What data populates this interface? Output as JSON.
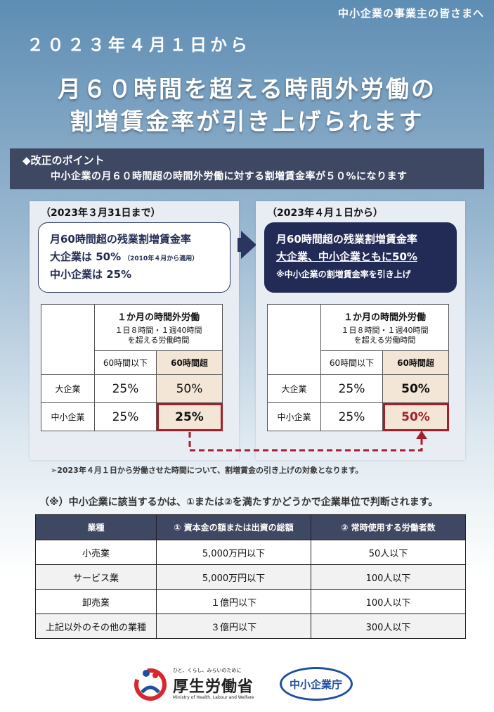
{
  "header": {
    "audience": "中小企業の事業主の皆さまへ",
    "date_from": "２０２３年４月１日から",
    "title_line1": "月６０時間を超える時間外労働の",
    "title_line2": "割増賃金率が引き上げられます"
  },
  "point": {
    "label": "◆改正のポイント",
    "text": "中小企業の月６０時間超の時間外労働に対する割増賃金率が５０%になります"
  },
  "before": {
    "period": "（2023年３月31日まで）",
    "callout_line1": "月60時間超の残業割増賃金率",
    "callout_line2": "大企業は 50%",
    "callout_note": "（2010年４月から適用）",
    "callout_line3": "中小企業は 25%",
    "table": {
      "header_main": "１か月の時間外労働",
      "header_sub1": "１日８時間・１週40時間",
      "header_sub2": "を超える労働時間",
      "col_under": "60時間以下",
      "col_over": "60時間超",
      "rows": [
        {
          "label": "大企業",
          "under": "25%",
          "over": "50%"
        },
        {
          "label": "中小企業",
          "under": "25%",
          "over": "25%"
        }
      ]
    }
  },
  "after": {
    "period": "（2023年４月１日から）",
    "callout_line1": "月60時間超の残業割増賃金率",
    "callout_line2": "大企業、中小企業ともに50%",
    "callout_line3": "※中小企業の割増賃金率を引き上げ",
    "table": {
      "header_main": "１か月の時間外労働",
      "header_sub1": "１日８時間・１週40時間",
      "header_sub2": "を超える労働時間",
      "col_under": "60時間以下",
      "col_over": "60時間超",
      "rows": [
        {
          "label": "大企業",
          "under": "25%",
          "over": "50%"
        },
        {
          "label": "中小企業",
          "under": "25%",
          "over": "50%"
        }
      ]
    }
  },
  "footnote": "➢2023年４月１日から労働させた時間について、割増賃金の引き上げの対象となります。",
  "sme_note": "（※）中小企業に該当するかは、①または②を満たすかどうかで企業単位で判断されます。",
  "sme_table": {
    "headers": [
      "業種",
      "① 資本金の額または出資の総額",
      "② 常時使用する労働者数"
    ],
    "rows": [
      [
        "小売業",
        "5,000万円以下",
        "50人以下"
      ],
      [
        "サービス業",
        "5,000万円以下",
        "100人以下"
      ],
      [
        "卸売業",
        "１億円以下",
        "100人以下"
      ],
      [
        "上記以外のその他の業種",
        "３億円以下",
        "300人以下"
      ]
    ]
  },
  "logos": {
    "mhlw_tagline": "ひと、くらし、みらいのために",
    "mhlw_name": "厚生労働省",
    "mhlw_english": "Ministry of Health, Labour and Welfare",
    "sme_agency": "中小企業庁"
  },
  "colors": {
    "navy": "#2b3660",
    "bar": "#3f4862",
    "highlight_red": "#a3202a",
    "over_cell": "#f4e6d6"
  }
}
